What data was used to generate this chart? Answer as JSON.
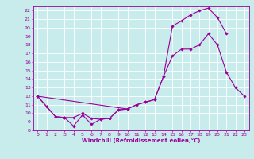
{
  "xlabel": "Windchill (Refroidissement éolien,°C)",
  "x_values": [
    0,
    1,
    2,
    3,
    4,
    5,
    6,
    7,
    8,
    9,
    10,
    11,
    12,
    13,
    14,
    15,
    16,
    17,
    18,
    19,
    20,
    21,
    22,
    23
  ],
  "line1": [
    12.0,
    10.8,
    9.6,
    9.5,
    8.5,
    9.8,
    8.7,
    9.3,
    9.4,
    10.4,
    10.5,
    null,
    null,
    null,
    null,
    null,
    null,
    null,
    null,
    null,
    null,
    null,
    null,
    null
  ],
  "line2": [
    12.0,
    10.8,
    9.6,
    9.5,
    9.5,
    10.0,
    9.4,
    9.3,
    9.4,
    10.4,
    10.5,
    11.0,
    11.3,
    11.6,
    14.3,
    16.7,
    17.5,
    17.5,
    18.0,
    19.3,
    18.0,
    14.8,
    13.0,
    12.0
  ],
  "line3": [
    12.0,
    null,
    null,
    null,
    null,
    null,
    null,
    null,
    null,
    null,
    10.5,
    11.0,
    11.3,
    11.6,
    14.3,
    20.2,
    20.8,
    21.5,
    22.0,
    22.3,
    21.2,
    19.3,
    null,
    null
  ],
  "ylim_min": 8,
  "ylim_max": 22.5,
  "xlim_min": -0.5,
  "xlim_max": 23.5,
  "yticks": [
    8,
    9,
    10,
    11,
    12,
    13,
    14,
    15,
    16,
    17,
    18,
    19,
    20,
    21,
    22
  ],
  "xticks": [
    0,
    1,
    2,
    3,
    4,
    5,
    6,
    7,
    8,
    9,
    10,
    11,
    12,
    13,
    14,
    15,
    16,
    17,
    18,
    19,
    20,
    21,
    22,
    23
  ],
  "line_color": "#990099",
  "bg_color": "#c8ecec",
  "grid_color": "#ffffff",
  "marker": "D",
  "markersize": 1.8,
  "linewidth": 0.8,
  "tick_fontsize": 4.5,
  "xlabel_fontsize": 5.0
}
